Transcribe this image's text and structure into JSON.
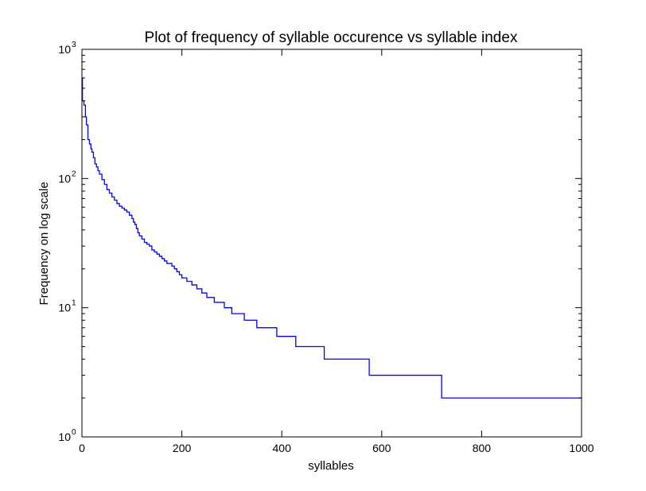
{
  "chart_data": {
    "type": "line",
    "title": "Plot of frequency of syllable occurence vs syllable index",
    "xlabel": "syllables",
    "ylabel": "Frequency on log scale",
    "xlim": [
      0,
      1000
    ],
    "ylim": [
      1,
      1000
    ],
    "yscale": "log",
    "grid": false,
    "x_ticks": [
      "0",
      "200",
      "400",
      "600",
      "800",
      "1000"
    ],
    "y_ticks": [
      {
        "value": 1,
        "base": "10",
        "exp": "0"
      },
      {
        "value": 10,
        "base": "10",
        "exp": "1"
      },
      {
        "value": 100,
        "base": "10",
        "exp": "2"
      },
      {
        "value": 1000,
        "base": "10",
        "exp": "3"
      }
    ],
    "series": [
      {
        "color": "#0000ff",
        "style": "steps",
        "points": [
          [
            0,
            600
          ],
          [
            1,
            400
          ],
          [
            4,
            370
          ],
          [
            7,
            300
          ],
          [
            9,
            260
          ],
          [
            12,
            200
          ],
          [
            15,
            185
          ],
          [
            18,
            170
          ],
          [
            20,
            160
          ],
          [
            23,
            145
          ],
          [
            26,
            130
          ],
          [
            29,
            123
          ],
          [
            32,
            115
          ],
          [
            35,
            108
          ],
          [
            40,
            98
          ],
          [
            45,
            90
          ],
          [
            50,
            82
          ],
          [
            55,
            77
          ],
          [
            60,
            72
          ],
          [
            65,
            68
          ],
          [
            70,
            64
          ],
          [
            75,
            61
          ],
          [
            80,
            59
          ],
          [
            85,
            57
          ],
          [
            90,
            55
          ],
          [
            95,
            52
          ],
          [
            100,
            49
          ],
          [
            103,
            46
          ],
          [
            106,
            44
          ],
          [
            109,
            41
          ],
          [
            112,
            38
          ],
          [
            115,
            36
          ],
          [
            120,
            34
          ],
          [
            125,
            32
          ],
          [
            130,
            31
          ],
          [
            135,
            30
          ],
          [
            140,
            28
          ],
          [
            145,
            27
          ],
          [
            150,
            26
          ],
          [
            155,
            25
          ],
          [
            160,
            24
          ],
          [
            165,
            23
          ],
          [
            170,
            22
          ],
          [
            180,
            21
          ],
          [
            185,
            20
          ],
          [
            190,
            19
          ],
          [
            195,
            18
          ],
          [
            200,
            17
          ],
          [
            210,
            16
          ],
          [
            220,
            15
          ],
          [
            230,
            14
          ],
          [
            240,
            13
          ],
          [
            250,
            12
          ],
          [
            265,
            11
          ],
          [
            285,
            10
          ],
          [
            300,
            9
          ],
          [
            325,
            8
          ],
          [
            350,
            7
          ],
          [
            390,
            6
          ],
          [
            428,
            5
          ],
          [
            485,
            4
          ],
          [
            575,
            3
          ],
          [
            720,
            2
          ],
          [
            1000,
            2
          ]
        ]
      }
    ]
  }
}
